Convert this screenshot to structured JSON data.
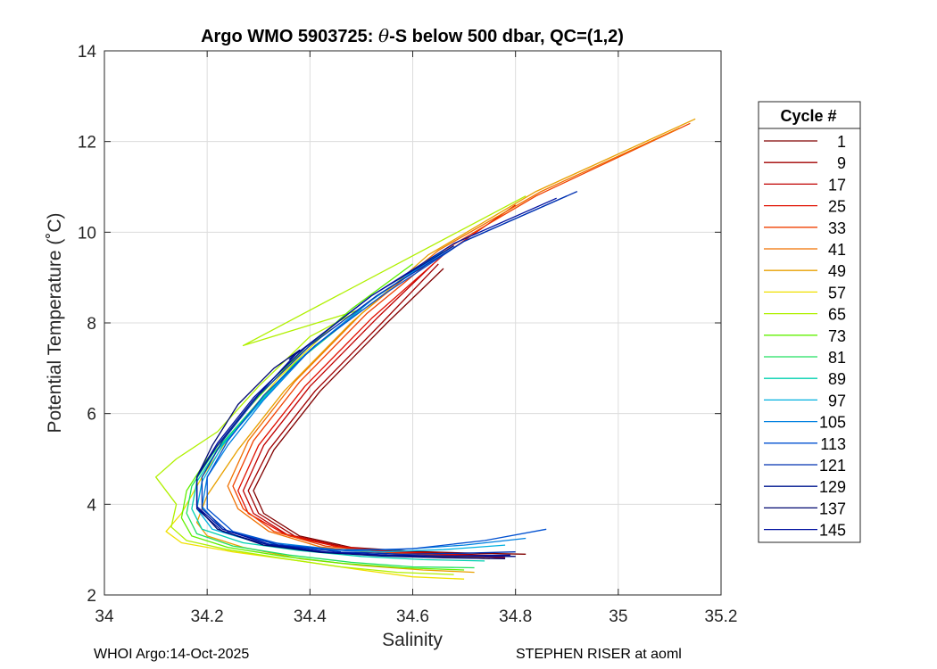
{
  "chart_data": {
    "type": "line",
    "title_parts": {
      "prefix": "Argo WMO 5903725: ",
      "theta": "θ",
      "suffix": "-S below 500 dbar,  QC=(1,2)"
    },
    "xlabel": "Salinity",
    "ylabel": "Potential Temperature (˚C)",
    "xlim": [
      34.0,
      35.2
    ],
    "ylim": [
      2,
      14
    ],
    "xticks": [
      34,
      34.2,
      34.4,
      34.6,
      34.8,
      35,
      35.2
    ],
    "xtick_labels": [
      "34",
      "34.2",
      "34.4",
      "34.6",
      "34.8",
      "35",
      "35.2"
    ],
    "yticks": [
      2,
      4,
      6,
      8,
      10,
      12,
      14
    ],
    "ytick_labels": [
      "2",
      "4",
      "6",
      "8",
      "10",
      "12",
      "14"
    ],
    "grid": true,
    "legend": {
      "title": "Cycle #",
      "placement": "outside-right",
      "entries": [
        "1",
        "9",
        "17",
        "25",
        "33",
        "41",
        "49",
        "57",
        "65",
        "73",
        "81",
        "89",
        "97",
        "105",
        "113",
        "121",
        "129",
        "137",
        "145"
      ],
      "colors": [
        "#800000",
        "#A00000",
        "#C00000",
        "#E01000",
        "#F04000",
        "#F07000",
        "#E8A000",
        "#F0E000",
        "#B0F000",
        "#60F000",
        "#20E060",
        "#00D0B0",
        "#00B0E0",
        "#0080E0",
        "#0050D0",
        "#0030B0",
        "#001890",
        "#000870",
        "#0010A0"
      ]
    },
    "series": [
      {
        "name": "1",
        "color": "#800000",
        "points": [
          [
            34.82,
            2.9
          ],
          [
            34.72,
            2.92
          ],
          [
            34.6,
            2.96
          ],
          [
            34.48,
            3.05
          ],
          [
            34.38,
            3.3
          ],
          [
            34.31,
            3.8
          ],
          [
            34.29,
            4.3
          ],
          [
            34.33,
            5.2
          ],
          [
            34.42,
            6.5
          ],
          [
            34.55,
            8.0
          ],
          [
            34.66,
            9.2
          ]
        ]
      },
      {
        "name": "9",
        "color": "#A00000",
        "points": [
          [
            34.8,
            2.85
          ],
          [
            34.7,
            2.9
          ],
          [
            34.58,
            2.95
          ],
          [
            34.47,
            3.05
          ],
          [
            34.37,
            3.3
          ],
          [
            34.3,
            3.8
          ],
          [
            34.28,
            4.3
          ],
          [
            34.32,
            5.2
          ],
          [
            34.41,
            6.5
          ],
          [
            34.54,
            8.0
          ],
          [
            34.65,
            9.3
          ]
        ]
      },
      {
        "name": "17",
        "color": "#C00000",
        "points": [
          [
            34.78,
            2.82
          ],
          [
            34.68,
            2.87
          ],
          [
            34.57,
            2.93
          ],
          [
            34.46,
            3.05
          ],
          [
            34.36,
            3.3
          ],
          [
            34.29,
            3.8
          ],
          [
            34.27,
            4.3
          ],
          [
            34.31,
            5.3
          ],
          [
            34.4,
            6.6
          ],
          [
            34.53,
            8.1
          ],
          [
            34.64,
            9.3
          ]
        ]
      },
      {
        "name": "25",
        "color": "#E01000",
        "points": [
          [
            34.76,
            2.85
          ],
          [
            34.66,
            2.9
          ],
          [
            34.55,
            2.96
          ],
          [
            34.45,
            3.08
          ],
          [
            34.35,
            3.35
          ],
          [
            34.28,
            3.8
          ],
          [
            34.26,
            4.3
          ],
          [
            34.3,
            5.3
          ],
          [
            34.39,
            6.6
          ],
          [
            34.52,
            8.1
          ],
          [
            34.66,
            9.5
          ],
          [
            34.8,
            10.6
          ]
        ]
      },
      {
        "name": "33",
        "color": "#F04000",
        "points": [
          [
            34.74,
            2.82
          ],
          [
            34.64,
            2.88
          ],
          [
            34.53,
            2.95
          ],
          [
            34.43,
            3.08
          ],
          [
            34.33,
            3.4
          ],
          [
            34.27,
            3.9
          ],
          [
            34.25,
            4.4
          ],
          [
            34.29,
            5.4
          ],
          [
            34.38,
            6.7
          ],
          [
            34.51,
            8.2
          ],
          [
            34.66,
            9.6
          ],
          [
            34.84,
            10.8
          ],
          [
            35.14,
            12.4
          ]
        ]
      },
      {
        "name": "41",
        "color": "#F07000",
        "points": [
          [
            34.75,
            2.8
          ],
          [
            34.64,
            2.85
          ],
          [
            34.52,
            2.93
          ],
          [
            34.42,
            3.06
          ],
          [
            34.32,
            3.4
          ],
          [
            34.26,
            3.9
          ],
          [
            34.24,
            4.4
          ],
          [
            34.28,
            5.4
          ],
          [
            34.37,
            6.7
          ],
          [
            34.5,
            8.2
          ],
          [
            34.65,
            9.6
          ],
          [
            34.85,
            10.9
          ],
          [
            35.12,
            12.3
          ]
        ]
      },
      {
        "name": "49",
        "color": "#E8A000",
        "points": [
          [
            34.72,
            2.5
          ],
          [
            34.62,
            2.55
          ],
          [
            34.5,
            2.65
          ],
          [
            34.38,
            2.8
          ],
          [
            34.27,
            3.05
          ],
          [
            34.2,
            3.3
          ],
          [
            34.18,
            3.6
          ],
          [
            34.2,
            4.2
          ],
          [
            34.26,
            5.2
          ],
          [
            34.35,
            6.5
          ],
          [
            34.48,
            8.0
          ],
          [
            34.63,
            9.5
          ],
          [
            34.84,
            10.9
          ],
          [
            35.15,
            12.5
          ]
        ]
      },
      {
        "name": "57",
        "color": "#F0E000",
        "points": [
          [
            34.7,
            2.35
          ],
          [
            34.6,
            2.4
          ],
          [
            34.5,
            2.55
          ],
          [
            34.38,
            2.75
          ],
          [
            34.25,
            2.95
          ],
          [
            34.15,
            3.15
          ],
          [
            34.12,
            3.4
          ],
          [
            34.15,
            3.8
          ],
          [
            34.19,
            4.6
          ],
          [
            34.25,
            5.6
          ],
          [
            34.34,
            6.8
          ],
          [
            34.46,
            8.1
          ]
        ]
      },
      {
        "name": "65",
        "color": "#B0F000",
        "points": [
          [
            34.68,
            2.45
          ],
          [
            34.57,
            2.5
          ],
          [
            34.46,
            2.62
          ],
          [
            34.35,
            2.8
          ],
          [
            34.24,
            3.0
          ],
          [
            34.16,
            3.2
          ],
          [
            34.13,
            3.5
          ],
          [
            34.14,
            4.0
          ],
          [
            34.1,
            4.6
          ],
          [
            34.14,
            5.0
          ],
          [
            34.22,
            5.6
          ],
          [
            34.3,
            6.6
          ],
          [
            34.4,
            7.7
          ],
          [
            34.5,
            8.3
          ],
          [
            34.27,
            7.5
          ],
          [
            34.82,
            10.8
          ]
        ]
      },
      {
        "name": "73",
        "color": "#60F000",
        "points": [
          [
            34.7,
            2.55
          ],
          [
            34.58,
            2.6
          ],
          [
            34.46,
            2.7
          ],
          [
            34.35,
            2.85
          ],
          [
            34.24,
            3.05
          ],
          [
            34.17,
            3.3
          ],
          [
            34.15,
            3.7
          ],
          [
            34.16,
            4.3
          ],
          [
            34.2,
            5.0
          ],
          [
            34.27,
            6.0
          ],
          [
            34.36,
            7.1
          ],
          [
            34.48,
            8.3
          ],
          [
            34.6,
            9.3
          ]
        ]
      },
      {
        "name": "81",
        "color": "#20E060",
        "points": [
          [
            34.72,
            2.6
          ],
          [
            34.6,
            2.62
          ],
          [
            34.48,
            2.72
          ],
          [
            34.36,
            2.88
          ],
          [
            34.25,
            3.08
          ],
          [
            34.18,
            3.35
          ],
          [
            34.16,
            3.8
          ],
          [
            34.17,
            4.4
          ],
          [
            34.21,
            5.1
          ],
          [
            34.28,
            6.0
          ],
          [
            34.37,
            7.1
          ],
          [
            34.49,
            8.2
          ]
        ]
      },
      {
        "name": "89",
        "color": "#00D0B0",
        "points": [
          [
            34.74,
            2.75
          ],
          [
            34.62,
            2.78
          ],
          [
            34.5,
            2.85
          ],
          [
            34.38,
            2.98
          ],
          [
            34.27,
            3.15
          ],
          [
            34.19,
            3.45
          ],
          [
            34.17,
            3.9
          ],
          [
            34.18,
            4.5
          ],
          [
            34.22,
            5.2
          ],
          [
            34.29,
            6.1
          ],
          [
            34.38,
            7.2
          ],
          [
            34.5,
            8.3
          ]
        ]
      },
      {
        "name": "97",
        "color": "#00B0E0",
        "points": [
          [
            34.78,
            3.1
          ],
          [
            34.66,
            3.0
          ],
          [
            34.54,
            2.95
          ],
          [
            34.42,
            3.0
          ],
          [
            34.3,
            3.15
          ],
          [
            34.21,
            3.45
          ],
          [
            34.18,
            3.9
          ],
          [
            34.19,
            4.5
          ],
          [
            34.23,
            5.3
          ],
          [
            34.3,
            6.2
          ],
          [
            34.39,
            7.3
          ],
          [
            34.52,
            8.5
          ],
          [
            34.66,
            9.6
          ]
        ]
      },
      {
        "name": "105",
        "color": "#0080E0",
        "points": [
          [
            34.82,
            3.25
          ],
          [
            34.7,
            3.1
          ],
          [
            34.57,
            3.0
          ],
          [
            34.45,
            3.0
          ],
          [
            34.33,
            3.15
          ],
          [
            34.23,
            3.45
          ],
          [
            34.19,
            3.95
          ],
          [
            34.2,
            4.6
          ],
          [
            34.24,
            5.3
          ],
          [
            34.31,
            6.3
          ],
          [
            34.4,
            7.4
          ],
          [
            34.53,
            8.6
          ],
          [
            34.68,
            9.7
          ]
        ]
      },
      {
        "name": "113",
        "color": "#0050D0",
        "points": [
          [
            34.86,
            3.45
          ],
          [
            34.74,
            3.2
          ],
          [
            34.6,
            3.02
          ],
          [
            34.47,
            2.98
          ],
          [
            34.35,
            3.1
          ],
          [
            34.25,
            3.4
          ],
          [
            34.2,
            3.9
          ],
          [
            34.2,
            4.6
          ],
          [
            34.24,
            5.4
          ],
          [
            34.31,
            6.4
          ],
          [
            34.41,
            7.5
          ],
          [
            34.54,
            8.6
          ],
          [
            34.7,
            9.8
          ],
          [
            34.9,
            10.8
          ]
        ]
      },
      {
        "name": "121",
        "color": "#0030B0",
        "points": [
          [
            34.8,
            2.95
          ],
          [
            34.7,
            2.92
          ],
          [
            34.58,
            2.9
          ],
          [
            34.46,
            2.95
          ],
          [
            34.34,
            3.1
          ],
          [
            34.24,
            3.4
          ],
          [
            34.19,
            3.9
          ],
          [
            34.19,
            4.6
          ],
          [
            34.23,
            5.4
          ],
          [
            34.3,
            6.4
          ],
          [
            34.4,
            7.5
          ],
          [
            34.53,
            8.6
          ],
          [
            34.7,
            9.8
          ],
          [
            34.92,
            10.9
          ]
        ]
      },
      {
        "name": "129",
        "color": "#001890",
        "points": [
          [
            34.8,
            2.85
          ],
          [
            34.68,
            2.85
          ],
          [
            34.56,
            2.87
          ],
          [
            34.44,
            2.93
          ],
          [
            34.32,
            3.1
          ],
          [
            34.23,
            3.4
          ],
          [
            34.18,
            3.9
          ],
          [
            34.18,
            4.6
          ],
          [
            34.22,
            5.3
          ],
          [
            34.29,
            6.3
          ],
          [
            34.38,
            7.4
          ],
          [
            34.36,
            7.2
          ],
          [
            34.52,
            8.6
          ],
          [
            34.68,
            9.7
          ]
        ]
      },
      {
        "name": "137",
        "color": "#000870",
        "points": [
          [
            34.78,
            2.8
          ],
          [
            34.66,
            2.82
          ],
          [
            34.54,
            2.86
          ],
          [
            34.42,
            2.94
          ],
          [
            34.31,
            3.1
          ],
          [
            34.22,
            3.45
          ],
          [
            34.18,
            3.95
          ],
          [
            34.18,
            4.6
          ],
          [
            34.21,
            5.3
          ],
          [
            34.26,
            6.2
          ],
          [
            34.33,
            7.0
          ],
          [
            34.38,
            7.4
          ]
        ]
      },
      {
        "name": "145",
        "color": "#0010A0",
        "points": [
          [
            34.79,
            2.88
          ],
          [
            34.67,
            2.86
          ],
          [
            34.55,
            2.88
          ],
          [
            34.43,
            2.95
          ],
          [
            34.32,
            3.12
          ],
          [
            34.23,
            3.45
          ],
          [
            34.18,
            3.95
          ],
          [
            34.18,
            4.6
          ],
          [
            34.22,
            5.35
          ],
          [
            34.29,
            6.35
          ],
          [
            34.39,
            7.45
          ],
          [
            34.52,
            8.6
          ],
          [
            34.68,
            9.75
          ],
          [
            34.88,
            10.75
          ]
        ]
      }
    ]
  },
  "footer": {
    "left": "WHOI Argo:14-Oct-2025",
    "right": "STEPHEN RISER at aoml"
  }
}
